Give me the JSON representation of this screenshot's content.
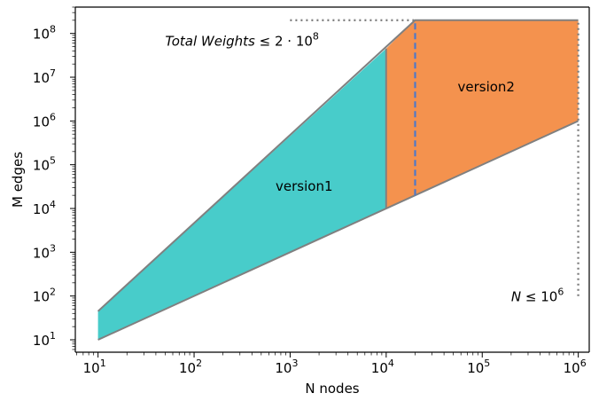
{
  "chart_data": {
    "type": "area",
    "title": "",
    "xlabel": "N nodes",
    "ylabel": "M edges",
    "x_scale": "log",
    "y_scale": "log",
    "xlim": [
      5.8,
      1300000
    ],
    "ylim": [
      5.2,
      400000000
    ],
    "x_ticks": [
      {
        "base": "10",
        "exp": "1",
        "value": 10
      },
      {
        "base": "10",
        "exp": "2",
        "value": 100
      },
      {
        "base": "10",
        "exp": "3",
        "value": 1000
      },
      {
        "base": "10",
        "exp": "4",
        "value": 10000
      },
      {
        "base": "10",
        "exp": "5",
        "value": 100000
      },
      {
        "base": "10",
        "exp": "6",
        "value": 1000000
      }
    ],
    "y_ticks": [
      {
        "base": "10",
        "exp": "1",
        "value": 10
      },
      {
        "base": "10",
        "exp": "2",
        "value": 100
      },
      {
        "base": "10",
        "exp": "3",
        "value": 1000
      },
      {
        "base": "10",
        "exp": "4",
        "value": 10000
      },
      {
        "base": "10",
        "exp": "5",
        "value": 100000
      },
      {
        "base": "10",
        "exp": "6",
        "value": 1000000
      },
      {
        "base": "10",
        "exp": "7",
        "value": 10000000
      },
      {
        "base": "10",
        "exp": "8",
        "value": 100000000
      }
    ],
    "grid": false,
    "regions": [
      {
        "label": "version1",
        "color": "#48ccca",
        "label_at": [
          1400,
          32000
        ],
        "polygon": [
          [
            10,
            10
          ],
          [
            10,
            45
          ],
          [
            10000,
            45000000
          ],
          [
            10000,
            10000
          ]
        ]
      },
      {
        "label": "version2",
        "color": "#f4924e",
        "label_at": [
          110000,
          6000000
        ],
        "polygon": [
          [
            10000,
            10000
          ],
          [
            10000,
            45000000
          ],
          [
            20000,
            200000000
          ],
          [
            1000000,
            200000000
          ],
          [
            1000000,
            1000000
          ]
        ]
      }
    ],
    "lines": [
      {
        "role": "lower-bound",
        "color": "#808080",
        "style": "solid",
        "points": [
          [
            10,
            10
          ],
          [
            1000000,
            1000000
          ]
        ]
      },
      {
        "role": "upper-bound",
        "color": "#808080",
        "style": "solid",
        "points": [
          [
            10,
            45
          ],
          [
            20000,
            200000000
          ],
          [
            1000000,
            200000000
          ]
        ]
      },
      {
        "role": "version-split",
        "color": "#808080",
        "style": "solid",
        "points": [
          [
            10000,
            10000
          ],
          [
            10000,
            45000000
          ]
        ]
      },
      {
        "role": "weights-limit",
        "color": "#808080",
        "style": "dotted",
        "points": [
          [
            1000,
            200000000
          ],
          [
            20000,
            200000000
          ]
        ]
      },
      {
        "role": "node-limit",
        "color": "#808080",
        "style": "dotted",
        "points": [
          [
            1000000,
            100
          ],
          [
            1000000,
            200000000
          ]
        ]
      },
      {
        "role": "threshold",
        "color": "#4e79c8",
        "style": "dashed",
        "points": [
          [
            20000,
            20000
          ],
          [
            20000,
            200000000
          ]
        ]
      }
    ],
    "annotations": [
      {
        "id": "weights",
        "text": "Total  Weights",
        "relation": "≤",
        "value_text": "2 · 10",
        "value_sup": "8",
        "at": [
          50,
          70000000
        ]
      },
      {
        "id": "nodes",
        "text": "N",
        "relation": "≤",
        "value_text": "10",
        "value_sup": "6",
        "at": [
          200000,
          100
        ]
      }
    ]
  }
}
